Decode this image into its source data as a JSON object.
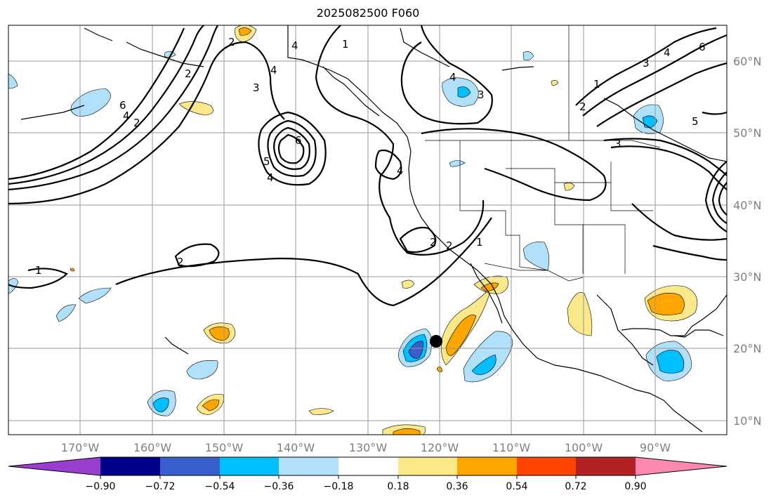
{
  "title": "2025082500 F060",
  "lat_labels": [
    "60°N",
    "50°N",
    "40°N",
    "30°N",
    "20°N",
    "10°N"
  ],
  "lon_labels": [
    "170°W",
    "160°W",
    "150°W",
    "140°W",
    "130°W",
    "120°W",
    "110°W",
    "100°W",
    "90°W"
  ],
  "colorbar": {
    "colors": [
      "#9a3ed0",
      "#00008b",
      "#3a5fcd",
      "#00bfff",
      "#b0e0fa",
      "#ffffff",
      "#fbe88b",
      "#ffa500",
      "#ff4500",
      "#b22222",
      "#ff88b0"
    ],
    "tick_labels": [
      "−0.90",
      "−0.72",
      "−0.54",
      "−0.36",
      "−0.18",
      "0.18",
      "0.36",
      "0.54",
      "0.72",
      "0.90"
    ]
  },
  "contour_labels": [
    "1",
    "2",
    "3",
    "4",
    "5",
    "6"
  ],
  "marker": "storm-position-dot"
}
